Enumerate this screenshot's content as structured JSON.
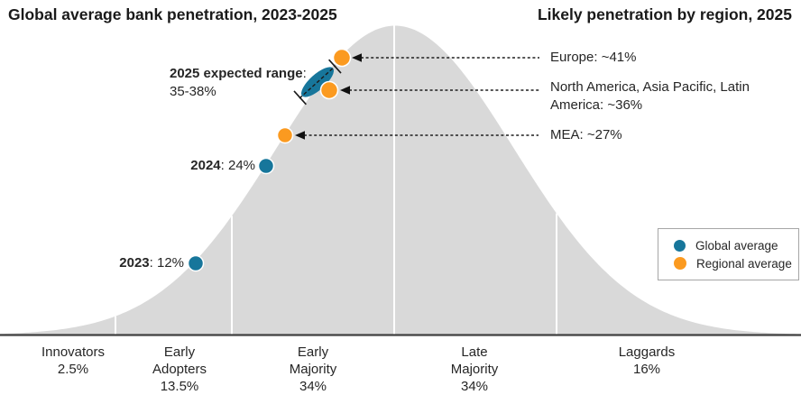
{
  "titles": {
    "left": "Global average bank penetration, 2023-2025",
    "right": "Likely penetration by region, 2025"
  },
  "colors": {
    "global_average": "#17769B",
    "regional_average": "#FB9A20",
    "curve_fill": "#D9D9D9",
    "axis": "#404040",
    "leader": "#1f1f1f"
  },
  "points": {
    "p2023": {
      "year": "2023",
      "rest": ": 12%"
    },
    "p2024": {
      "year": "2024",
      "rest": ": 24%"
    },
    "range2025": {
      "title": "2025 expected range",
      "colon": ":",
      "value": "35-38%"
    }
  },
  "regions": [
    {
      "text": "Europe: ~41%"
    },
    {
      "text": "North America, Asia Pacific, Latin America: ~36%"
    },
    {
      "text": "MEA: ~27%"
    }
  ],
  "segments": [
    {
      "lines": [
        "Innovators",
        "2.5%",
        ""
      ]
    },
    {
      "lines": [
        "Early",
        "Adopters",
        "13.5%"
      ]
    },
    {
      "lines": [
        "Early",
        "Majority",
        "34%"
      ]
    },
    {
      "lines": [
        "Late",
        "Majority",
        "34%"
      ]
    },
    {
      "lines": [
        "Laggards",
        "16%",
        ""
      ]
    }
  ],
  "legend": {
    "items": [
      {
        "label": "Global average"
      },
      {
        "label": "Regional average"
      }
    ]
  },
  "chart_data": {
    "type": "area",
    "title": "Global average bank penetration, 2023-2025",
    "subtitle_right": "Likely penetration by region, 2025",
    "curve": "normal distribution (diffusion of innovation bell curve)",
    "adopter_segments": [
      {
        "name": "Innovators",
        "share_pct": 2.5
      },
      {
        "name": "Early Adopters",
        "share_pct": 13.5
      },
      {
        "name": "Early Majority",
        "share_pct": 34
      },
      {
        "name": "Late Majority",
        "share_pct": 34
      },
      {
        "name": "Laggards",
        "share_pct": 16
      }
    ],
    "series": [
      {
        "name": "Global average",
        "points": [
          {
            "label": "2023",
            "value_pct": 12
          },
          {
            "label": "2024",
            "value_pct": 24
          },
          {
            "label": "2025 expected range",
            "range_pct": [
              35,
              38
            ]
          }
        ]
      },
      {
        "name": "Regional average",
        "points": [
          {
            "label": "Europe",
            "value_pct": 41,
            "approx": true
          },
          {
            "label": "North America, Asia Pacific, Latin America",
            "value_pct": 36,
            "approx": true
          },
          {
            "label": "MEA",
            "value_pct": 27,
            "approx": true
          }
        ]
      }
    ],
    "legend_position": "right-middle",
    "grid": false
  }
}
